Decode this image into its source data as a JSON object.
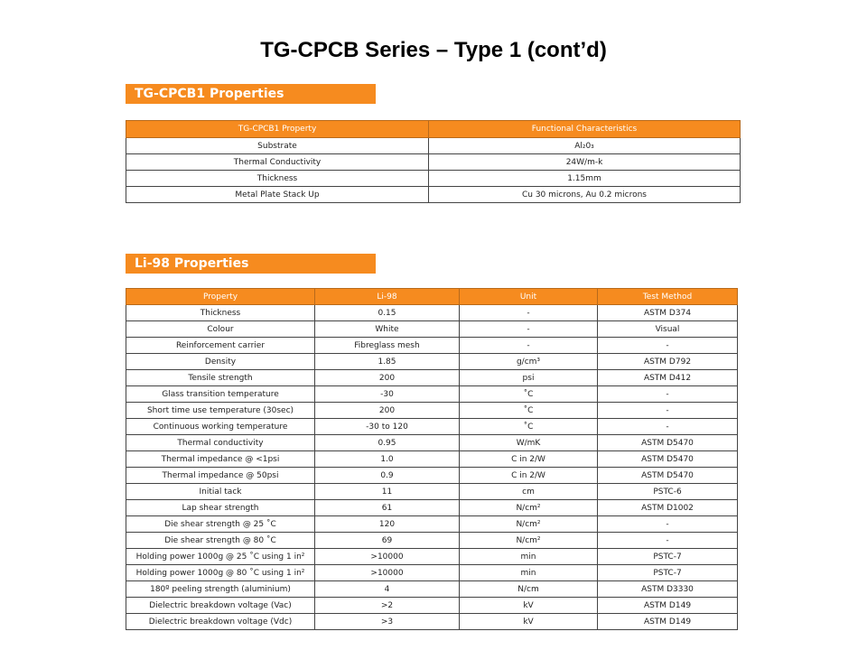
{
  "title": "TG-CPCB Series – Type 1 (cont’d)",
  "tgcpcb": {
    "header": "TG-CPCB1 Properties",
    "columns": [
      "TG-CPCB1 Property",
      "Functional Characteristics"
    ],
    "rows": [
      [
        "Substrate",
        "Al₂0₃"
      ],
      [
        "Thermal Conductivity",
        "24W/m-k"
      ],
      [
        "Thickness",
        "1.15mm"
      ],
      [
        "Metal Plate Stack Up",
        "Cu 30 microns, Au 0.2 microns"
      ]
    ]
  },
  "li98": {
    "header": "Li-98 Properties",
    "columns": [
      "Property",
      "Li-98",
      "Unit",
      "Test Method"
    ],
    "rows": [
      [
        "Thickness",
        "0.15",
        "-",
        "ASTM D374"
      ],
      [
        "Colour",
        "White",
        "-",
        "Visual"
      ],
      [
        "Reinforcement carrier",
        "Fibreglass mesh",
        "-",
        "-"
      ],
      [
        "Density",
        "1.85",
        "g/cm³",
        "ASTM D792"
      ],
      [
        "Tensile strength",
        "200",
        "psi",
        "ASTM D412"
      ],
      [
        "Glass transition temperature",
        "-30",
        "˚C",
        "-"
      ],
      [
        "Short time use temperature (30sec)",
        "200",
        "˚C",
        "-"
      ],
      [
        "Continuous working temperature",
        "-30 to 120",
        "˚C",
        "-"
      ],
      [
        "Thermal conductivity",
        "0.95",
        "W/mK",
        "ASTM D5470"
      ],
      [
        "Thermal impedance @ <1psi",
        "1.0",
        "C in 2/W",
        "ASTM D5470"
      ],
      [
        "Thermal impedance @ 50psi",
        "0.9",
        "C in 2/W",
        "ASTM D5470"
      ],
      [
        "Initial tack",
        "11",
        "cm",
        "PSTC-6"
      ],
      [
        "Lap shear strength",
        "61",
        "N/cm²",
        "ASTM D1002"
      ],
      [
        "Die shear strength @ 25 ˚C",
        "120",
        "N/cm²",
        "-"
      ],
      [
        "Die shear strength @ 80 ˚C",
        "69",
        "N/cm²",
        "-"
      ],
      [
        "Holding power 1000g @ 25 ˚C using 1 in²",
        ">10000",
        "min",
        "PSTC-7"
      ],
      [
        "Holding power 1000g @ 80 ˚C using 1 in²",
        ">10000",
        "min",
        "PSTC-7"
      ],
      [
        "180º peeling strength  (aluminium)",
        "4",
        "N/cm",
        "ASTM D3330"
      ],
      [
        "Dielectric breakdown voltage (Vac)",
        ">2",
        "kV",
        "ASTM D149"
      ],
      [
        "Dielectric breakdown voltage (Vdc)",
        ">3",
        "kV",
        "ASTM D149"
      ]
    ]
  }
}
